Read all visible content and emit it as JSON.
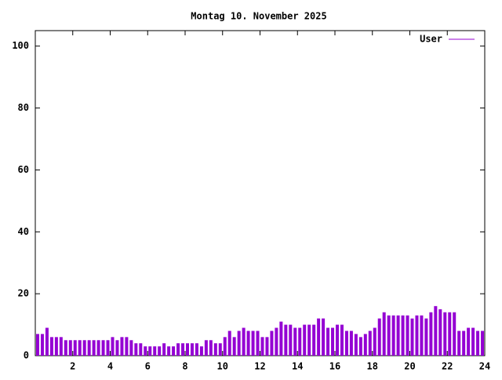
{
  "chart_data": {
    "type": "impulse",
    "title": "Montag 10. November 2025",
    "series": [
      {
        "name": "User",
        "color": "#9400d3",
        "x": [
          0,
          0.25,
          0.5,
          0.75,
          1,
          1.25,
          1.5,
          1.75,
          2,
          2.25,
          2.5,
          2.75,
          3,
          3.25,
          3.5,
          3.75,
          4,
          4.25,
          4.5,
          4.75,
          5,
          5.25,
          5.5,
          5.75,
          6,
          6.25,
          6.5,
          6.75,
          7,
          7.25,
          7.5,
          7.75,
          8,
          8.25,
          8.5,
          8.75,
          9,
          9.25,
          9.5,
          9.75,
          10,
          10.25,
          10.5,
          10.75,
          11,
          11.25,
          11.5,
          11.75,
          12,
          12.25,
          12.5,
          12.75,
          13,
          13.25,
          13.5,
          13.75,
          14,
          14.25,
          14.5,
          14.75,
          15,
          15.25,
          15.5,
          15.75,
          16,
          16.25,
          16.5,
          16.75,
          17,
          17.25,
          17.5,
          17.75,
          18,
          18.25,
          18.5,
          18.75,
          19,
          19.25,
          19.5,
          19.75,
          20,
          20.25,
          20.5,
          20.75,
          21,
          21.25,
          21.5,
          21.75,
          22,
          22.25,
          22.5,
          22.75,
          23,
          23.25,
          23.5,
          23.75
        ],
        "values": [
          7,
          7,
          9,
          6,
          6,
          6,
          5,
          5,
          5,
          5,
          5,
          5,
          5,
          5,
          5,
          5,
          6,
          5,
          6,
          6,
          5,
          4,
          4,
          3,
          3,
          3,
          3,
          4,
          3,
          3,
          4,
          4,
          4,
          4,
          4,
          3,
          5,
          5,
          4,
          4,
          6,
          8,
          6,
          8,
          9,
          8,
          8,
          8,
          6,
          6,
          8,
          9,
          11,
          10,
          10,
          9,
          9,
          10,
          10,
          10,
          12,
          12,
          9,
          9,
          10,
          10,
          8,
          8,
          7,
          6,
          7,
          8,
          9,
          12,
          14,
          13,
          13,
          13,
          13,
          13,
          12,
          13,
          13,
          12,
          14,
          16,
          15,
          14,
          14,
          14,
          8,
          8,
          9,
          9,
          8,
          8
        ]
      }
    ],
    "xlim": [
      0,
      24
    ],
    "xticks": [
      2,
      4,
      6,
      8,
      10,
      12,
      14,
      16,
      18,
      20,
      22,
      24
    ],
    "ylim": [
      0,
      105
    ],
    "yticks": [
      0,
      20,
      40,
      60,
      80,
      100
    ],
    "legend": "top-right"
  }
}
